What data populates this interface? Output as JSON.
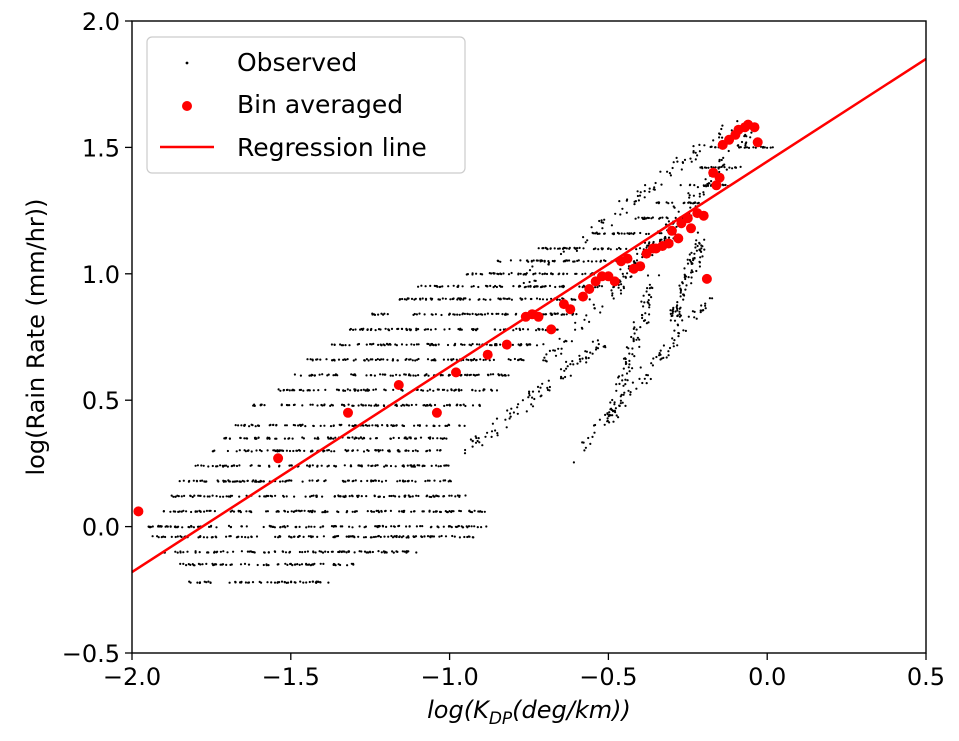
{
  "chart_data": {
    "type": "scatter",
    "xlabel": {
      "base": "log(K",
      "sub": "DP",
      "rest": "(deg/km))"
    },
    "ylabel": "log(Rain Rate (mm/hr))",
    "xlim": [
      -2.0,
      0.5
    ],
    "ylim": [
      -0.5,
      2.0
    ],
    "xticks": [
      "-2.0",
      "-1.5",
      "-1.0",
      "-0.5",
      "0.0",
      "0.5"
    ],
    "yticks": [
      "-0.5",
      "0.0",
      "0.5",
      "1.0",
      "1.5",
      "2.0"
    ],
    "xtick_values": [
      -2.0,
      -1.5,
      -1.0,
      -0.5,
      0.0,
      0.5
    ],
    "ytick_values": [
      -0.5,
      0.0,
      0.5,
      1.0,
      1.5,
      2.0
    ],
    "grid": false,
    "legend_position": "top-left",
    "colors": {
      "observed": "#000000",
      "bin_averaged": "#ff0000",
      "regression": "#ff0000"
    },
    "series": [
      {
        "name": "Observed",
        "marker": "small-dot",
        "horizontal_bands": [
          {
            "y": -0.22,
            "x": [
              -1.82,
              -1.38
            ]
          },
          {
            "y": -0.15,
            "x": [
              -1.85,
              -1.3
            ]
          },
          {
            "y": -0.1,
            "x": [
              -1.9,
              -1.1
            ]
          },
          {
            "y": -0.04,
            "x": [
              -1.95,
              -0.92
            ]
          },
          {
            "y": 0.0,
            "x": [
              -1.95,
              -0.88
            ]
          },
          {
            "y": 0.06,
            "x": [
              -1.9,
              -0.88
            ]
          },
          {
            "y": 0.12,
            "x": [
              -1.88,
              -0.95
            ]
          },
          {
            "y": 0.18,
            "x": [
              -1.85,
              -0.98
            ]
          },
          {
            "y": 0.24,
            "x": [
              -1.8,
              -1.0
            ]
          },
          {
            "y": 0.3,
            "x": [
              -1.75,
              -1.02
            ]
          },
          {
            "y": 0.35,
            "x": [
              -1.72,
              -1.0
            ]
          },
          {
            "y": 0.4,
            "x": [
              -1.68,
              -0.95
            ]
          },
          {
            "y": 0.48,
            "x": [
              -1.62,
              -0.9
            ]
          },
          {
            "y": 0.54,
            "x": [
              -1.55,
              -0.85
            ]
          },
          {
            "y": 0.6,
            "x": [
              -1.5,
              -0.8
            ]
          },
          {
            "y": 0.66,
            "x": [
              -1.45,
              -0.75
            ]
          },
          {
            "y": 0.72,
            "x": [
              -1.38,
              -0.7
            ]
          },
          {
            "y": 0.78,
            "x": [
              -1.32,
              -0.65
            ]
          },
          {
            "y": 0.84,
            "x": [
              -1.25,
              -0.6
            ]
          },
          {
            "y": 0.9,
            "x": [
              -1.2,
              -0.55
            ]
          },
          {
            "y": 0.95,
            "x": [
              -1.1,
              -0.52
            ]
          },
          {
            "y": 1.0,
            "x": [
              -0.95,
              -0.5
            ]
          },
          {
            "y": 1.05,
            "x": [
              -0.85,
              -0.45
            ]
          },
          {
            "y": 1.1,
            "x": [
              -0.72,
              -0.4
            ]
          },
          {
            "y": 1.16,
            "x": [
              -0.55,
              -0.32
            ]
          },
          {
            "y": 1.22,
            "x": [
              -0.42,
              -0.25
            ]
          },
          {
            "y": 1.28,
            "x": [
              -0.35,
              -0.2
            ]
          },
          {
            "y": 1.35,
            "x": [
              -0.28,
              -0.12
            ]
          },
          {
            "y": 1.42,
            "x": [
              -0.22,
              -0.08
            ]
          },
          {
            "y": 1.5,
            "x": [
              -0.18,
              0.02
            ]
          }
        ],
        "streaks": [
          {
            "x": [
              -0.78,
              -0.1
            ],
            "y": [
              0.95,
              1.6
            ]
          },
          {
            "x": [
              -0.7,
              -0.2
            ],
            "y": [
              0.65,
              1.3
            ]
          },
          {
            "x": [
              -0.5,
              -0.35
            ],
            "y": [
              0.4,
              1.0
            ]
          },
          {
            "x": [
              -0.62,
              -0.18
            ],
            "y": [
              0.25,
              0.9
            ]
          },
          {
            "x": [
              -0.95,
              -0.5
            ],
            "y": [
              0.3,
              0.75
            ]
          },
          {
            "x": [
              -0.3,
              -0.2
            ],
            "y": [
              0.8,
              1.15
            ]
          },
          {
            "x": [
              -0.45,
              -0.05
            ],
            "y": [
              1.0,
              1.55
            ]
          }
        ]
      },
      {
        "name": "Bin averaged",
        "marker": "circle",
        "x": [
          -1.98,
          -1.54,
          -1.32,
          -1.16,
          -1.04,
          -0.98,
          -0.88,
          -0.82,
          -0.76,
          -0.74,
          -0.72,
          -0.68,
          -0.64,
          -0.62,
          -0.58,
          -0.56,
          -0.54,
          -0.52,
          -0.5,
          -0.48,
          -0.46,
          -0.44,
          -0.42,
          -0.4,
          -0.38,
          -0.36,
          -0.35,
          -0.33,
          -0.31,
          -0.3,
          -0.28,
          -0.27,
          -0.25,
          -0.24,
          -0.22,
          -0.2,
          -0.19,
          -0.17,
          -0.16,
          -0.15,
          -0.14,
          -0.12,
          -0.1,
          -0.09,
          -0.07,
          -0.06,
          -0.04,
          -0.03
        ],
        "y": [
          0.06,
          0.27,
          0.45,
          0.56,
          0.45,
          0.61,
          0.68,
          0.72,
          0.83,
          0.84,
          0.83,
          0.78,
          0.88,
          0.86,
          0.91,
          0.94,
          0.97,
          0.99,
          0.99,
          0.97,
          1.05,
          1.06,
          1.02,
          1.03,
          1.08,
          1.1,
          1.1,
          1.11,
          1.12,
          1.17,
          1.14,
          1.2,
          1.22,
          1.18,
          1.24,
          1.23,
          0.98,
          1.4,
          1.35,
          1.38,
          1.51,
          1.53,
          1.55,
          1.57,
          1.58,
          1.59,
          1.58,
          1.52
        ]
      },
      {
        "name": "Regression line",
        "marker": "line",
        "x": [
          -2.0,
          0.5
        ],
        "y": [
          -0.18,
          1.85
        ]
      }
    ]
  }
}
